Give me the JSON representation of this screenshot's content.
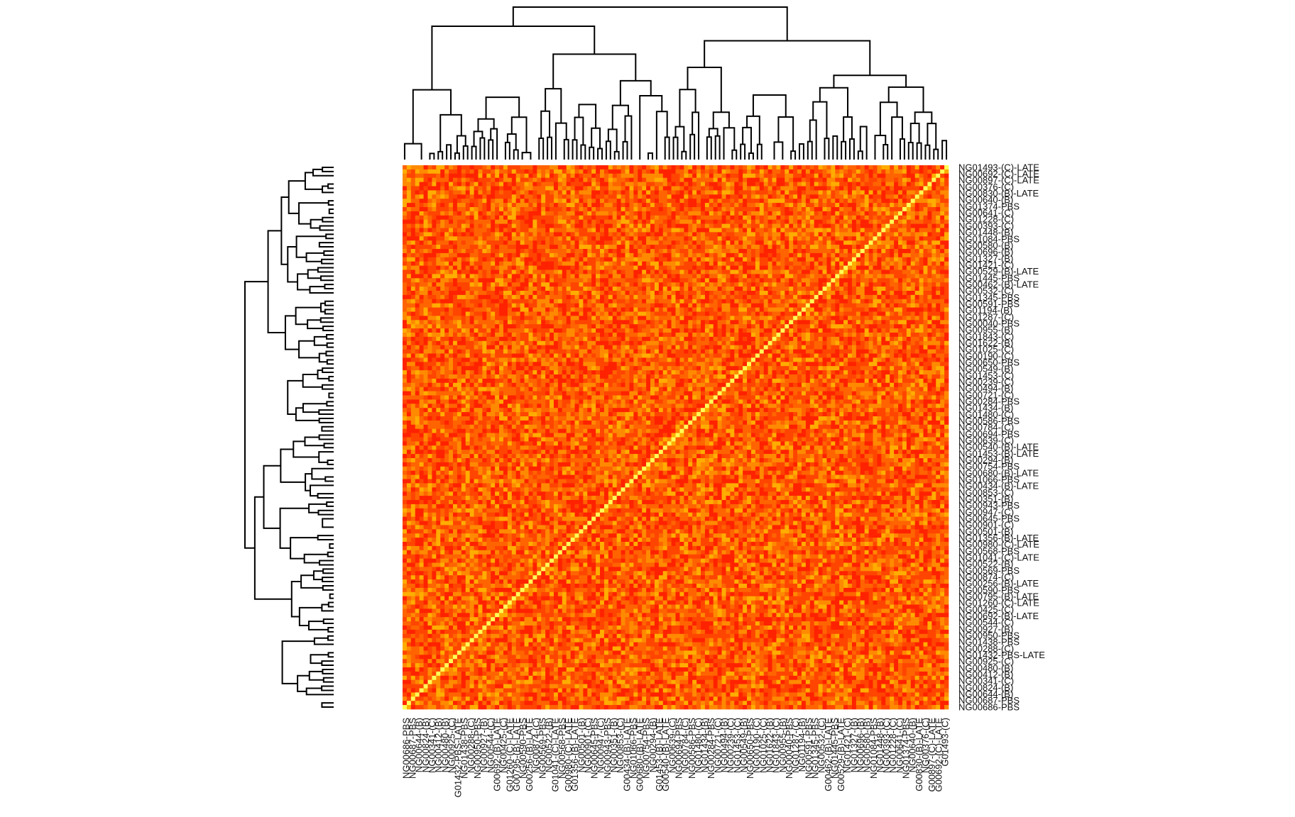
{
  "chart_data": {
    "type": "heatmap",
    "title": "",
    "xlabel": "",
    "ylabel": "",
    "dendrogram": {
      "rows": true,
      "columns": true
    },
    "matrix_size": 130,
    "diagonal_value": 1.0,
    "color_scale": {
      "low": "#ff1a00",
      "mid": "#ff8c00",
      "high": "#ffff66"
    },
    "colors": [
      "#ff2200",
      "#ff4500",
      "#ff6400",
      "#ff8a00",
      "#ffad00",
      "#ffff55"
    ],
    "row_labels": [
      "NG01493-(C)-LATE",
      "NG00692-(C)-LATE",
      "NG00897-(C)-LATE",
      "NG00376-(C)",
      "NG00830-(B)-LATE",
      "NG00640-(B)",
      "NG01374-PBS",
      "NG00641-(C)",
      "NG01228-(C)",
      "NG00393-(C)",
      "NG01448-(B)",
      "NG01084-PBS",
      "NG00580-(B)",
      "NG00696-(B)",
      "NG01327-(B)",
      "NG01421-(C)",
      "NG00529-(B)-LATE",
      "NG01445-PBS",
      "NG00462-(B)-LATE",
      "NG00532-(C)",
      "NG01345-PBS",
      "NG00591-PBS",
      "NG01194-(B)",
      "NG01287-(C)",
      "NG00040-PBS",
      "NG00955-(B)",
      "NG01843-(C)",
      "NG01622-(B)",
      "NG01025-(C)",
      "NG00190-(C)",
      "NG00650-PBS",
      "NG00549-(B)",
      "NG01453-(C)",
      "NG00239-(C)",
      "NG00494-(B)",
      "NG00721-(C)",
      "NG00284-PBS",
      "NG01434-(B)",
      "NG01480-(C)",
      "NG00586-PBS",
      "NG00784-(C)",
      "NG00694-PBS",
      "NG00639-(C)",
      "NG00540-(B)-LATE",
      "NG01453-(B)-LATE",
      "NG00294-(B)",
      "NG00754-PBS",
      "NG00680-(B)-LATE",
      "NG01066-PBS",
      "NG00434-(B)-LATE",
      "NG00853-(C)",
      "NG00351-(B)",
      "NG00943-PBS",
      "NG00947-(C)",
      "NG00645-PBS",
      "NG00901-(C)",
      "NG00501-(B)",
      "NG01356-(B)-LATE",
      "NG00980-(C)-LATE",
      "NG00568-PBS",
      "NG01041-(C)-LATE",
      "NG00522-(B)",
      "NG00569-PBS",
      "NG00874-(C)",
      "NG00256-(B)-LATE",
      "NG00590-PBS",
      "NG00795-(B)-LATE",
      "NG01260-(C)-LATE",
      "NG00425-(C)",
      "NG00692-(B)-LATE",
      "NG00544-(C)",
      "NG00927-(B)",
      "NG00950-PBS",
      "NG01438-PBS",
      "NG00288-(C)",
      "NG01432-PBS-LATE",
      "NG00925-(C)",
      "NG00480-(B)",
      "NG00412-(B)",
      "NG00341-(C)",
      "NG00824-(B)",
      "NG00644-(B)",
      "NG00687-PBS",
      "NG00686-PBS"
    ],
    "column_labels": [
      "NG00686-PBS",
      "NG00687-PBS",
      "NG00644-(B)",
      "NG00824-(B)",
      "NG00341-(C)",
      "NG00412-(B)",
      "NG00480-(B)",
      "NG00925-(C)",
      "G01432-PBS-LATE",
      "NG01438-PBS",
      "NG00288-(C)",
      "NG00950-PBS",
      "NG00927-(B)",
      "NG00544-(C)",
      "G00692-(B)-LATE",
      "NG00425-(C)",
      "G01260-(C)-LATE",
      "G00795-(B)-LATE",
      "NG00590-PBS",
      "G00256-(B)-LATE",
      "NG00874-(C)",
      "NG00569-PBS",
      "NG00522-(B)",
      "G01041-(C)-LATE",
      "NG00568-PBS",
      "G00980-(C)-LATE",
      "G01356-(B)-LATE",
      "NG00501-(B)",
      "NG00901-(C)",
      "NG00645-PBS",
      "NG00947-(C)",
      "NG00943-PBS",
      "NG00351-(B)",
      "NG00853-(C)",
      "G00434-(B)-LATE",
      "NG01066-PBS",
      "G00680-(B)-LATE",
      "NG00754-PBS",
      "NG00294-(B)",
      "G01453-(B)-LATE",
      "G00540-(B)-LATE",
      "NG00639-(C)",
      "NG00694-PBS",
      "NG00784-(C)",
      "NG00586-PBS",
      "NG01480-(C)",
      "NG01434-(B)",
      "NG00284-PBS",
      "NG00721-(C)",
      "NG00494-(B)",
      "NG00239-(C)",
      "NG01453-(C)",
      "NG00549-(B)",
      "NG00650-PBS",
      "NG00190-(C)",
      "NG01025-(C)",
      "NG01622-(B)",
      "NG01843-(C)",
      "NG00955-(B)",
      "NG00040-PBS",
      "NG01287-(C)",
      "NG01194-(B)",
      "NG00591-PBS",
      "NG01345-PBS",
      "NG00532-(C)",
      "G00462-(B)-LATE",
      "NG01445-PBS",
      "G00529-(B)-LATE",
      "NG01421-(C)",
      "NG01327-(B)",
      "NG00696-(B)",
      "NG00580-(B)",
      "NG01084-PBS",
      "NG01448-(B)",
      "NG00393-(C)",
      "NG01228-(C)",
      "NG00641-(C)",
      "NG01374-PBS",
      "NG00640-(B)",
      "G00830-(B)-LATE",
      "NG00376-(C)",
      "G00897-(C)-LATE",
      "G00692-(C)-LATE",
      "G01493-(C)"
    ]
  }
}
